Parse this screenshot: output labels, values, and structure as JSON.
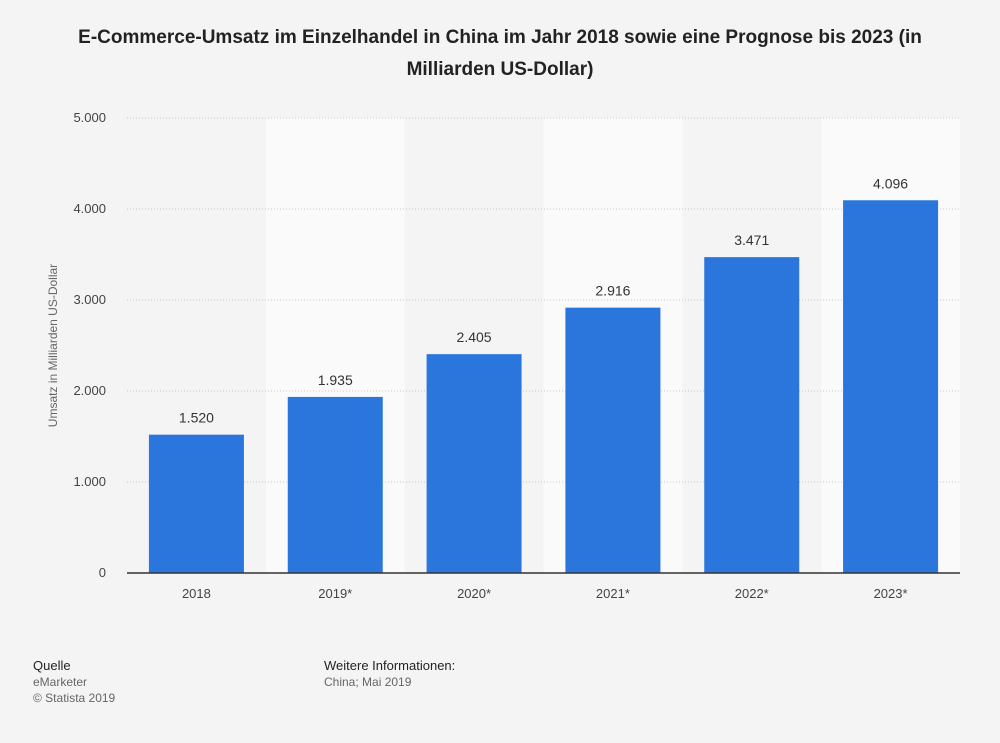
{
  "chart_data": {
    "type": "bar",
    "title": "E-Commerce-Umsatz im Einzelhandel in China im Jahr 2018 sowie eine Prognose bis 2023 (in Milliarden US-Dollar)",
    "categories": [
      "2018",
      "2019*",
      "2020*",
      "2021*",
      "2022*",
      "2023*"
    ],
    "values": [
      1520,
      1935,
      2405,
      2916,
      3471,
      4096
    ],
    "value_labels": [
      "1.520",
      "1.935",
      "2.405",
      "2.916",
      "3.471",
      "4.096"
    ],
    "xlabel": "",
    "ylabel": "Umsatz in Milliarden US-Dollar",
    "ylim": [
      0,
      5000
    ],
    "yticks": [
      0,
      1000,
      2000,
      3000,
      4000,
      5000
    ],
    "ytick_labels": [
      "0",
      "1.000",
      "2.000",
      "3.000",
      "4.000",
      "5.000"
    ],
    "grid": true,
    "bar_color": "#2a76dd",
    "background_band_color": "#fafafa"
  },
  "footer": {
    "source_heading": "Quelle",
    "source_name": "eMarketer",
    "copyright": "© Statista 2019",
    "info_heading": "Weitere Informationen:",
    "info_text": "China; Mai 2019"
  }
}
